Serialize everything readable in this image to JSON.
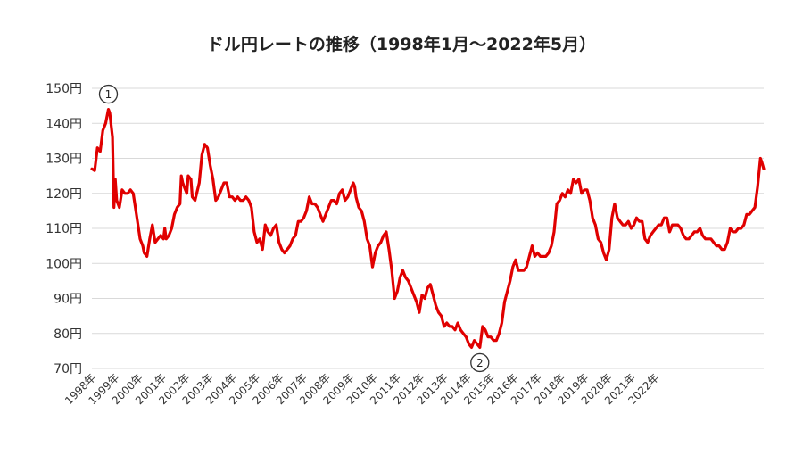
{
  "chart_data": {
    "type": "line",
    "title": "ドル円レートの推移（1998年1月～2022年5月）",
    "xlabel": "",
    "ylabel": "",
    "ylim": [
      70,
      150
    ],
    "yticks": [
      {
        "value": 150,
        "label": "150円"
      },
      {
        "value": 140,
        "label": "140円"
      },
      {
        "value": 130,
        "label": "130円"
      },
      {
        "value": 120,
        "label": "120円"
      },
      {
        "value": 110,
        "label": "110円"
      },
      {
        "value": 100,
        "label": "100円"
      },
      {
        "value": 90,
        "label": "90円"
      },
      {
        "value": 80,
        "label": "80円"
      },
      {
        "value": 70,
        "label": "70円"
      }
    ],
    "xticks": [
      "1998年",
      "1999年",
      "2000年",
      "2001年",
      "2002年",
      "2003年",
      "2004年",
      "2005年",
      "2006年",
      "2007年",
      "2008年",
      "2009年",
      "2010年",
      "2011年",
      "2012年",
      "2013年",
      "2014年",
      "2015年",
      "2016年",
      "2017年",
      "2018年",
      "2019年",
      "2020年",
      "2021年",
      "2022年"
    ],
    "xlim": [
      1998.0,
      2022.42
    ],
    "grid": true,
    "series": [
      {
        "color": "#e00000",
        "points": [
          [
            1998.0,
            127
          ],
          [
            1998.1,
            126.5
          ],
          [
            1998.2,
            133
          ],
          [
            1998.3,
            132
          ],
          [
            1998.4,
            138
          ],
          [
            1998.5,
            140
          ],
          [
            1998.6,
            144
          ],
          [
            1998.65,
            143
          ],
          [
            1998.75,
            136
          ],
          [
            1998.8,
            116
          ],
          [
            1998.85,
            124
          ],
          [
            1998.9,
            118
          ],
          [
            1999.0,
            116
          ],
          [
            1999.1,
            121
          ],
          [
            1999.2,
            120
          ],
          [
            1999.3,
            120
          ],
          [
            1999.4,
            121
          ],
          [
            1999.5,
            120
          ],
          [
            1999.6,
            115
          ],
          [
            1999.75,
            107
          ],
          [
            1999.85,
            105
          ],
          [
            1999.9,
            103
          ],
          [
            2000.0,
            102
          ],
          [
            2000.1,
            107
          ],
          [
            2000.2,
            111
          ],
          [
            2000.3,
            106
          ],
          [
            2000.4,
            107
          ],
          [
            2000.5,
            108
          ],
          [
            2000.6,
            107
          ],
          [
            2000.65,
            110
          ],
          [
            2000.7,
            107
          ],
          [
            2000.8,
            108
          ],
          [
            2000.9,
            110
          ],
          [
            2001.0,
            114
          ],
          [
            2001.1,
            116
          ],
          [
            2001.2,
            117
          ],
          [
            2001.25,
            125
          ],
          [
            2001.3,
            123
          ],
          [
            2001.4,
            121
          ],
          [
            2001.45,
            120
          ],
          [
            2001.5,
            125
          ],
          [
            2001.6,
            124
          ],
          [
            2001.65,
            119
          ],
          [
            2001.75,
            118
          ],
          [
            2001.9,
            123
          ],
          [
            2002.0,
            131
          ],
          [
            2002.1,
            134
          ],
          [
            2002.2,
            133
          ],
          [
            2002.3,
            128
          ],
          [
            2002.4,
            124
          ],
          [
            2002.5,
            118
          ],
          [
            2002.6,
            119
          ],
          [
            2002.7,
            121
          ],
          [
            2002.8,
            123
          ],
          [
            2002.9,
            123
          ],
          [
            2003.0,
            119
          ],
          [
            2003.1,
            119
          ],
          [
            2003.2,
            118
          ],
          [
            2003.3,
            119
          ],
          [
            2003.4,
            118
          ],
          [
            2003.5,
            118
          ],
          [
            2003.6,
            119
          ],
          [
            2003.7,
            118
          ],
          [
            2003.8,
            116
          ],
          [
            2003.9,
            109
          ],
          [
            2004.0,
            106
          ],
          [
            2004.1,
            107
          ],
          [
            2004.2,
            104
          ],
          [
            2004.3,
            111
          ],
          [
            2004.4,
            109
          ],
          [
            2004.5,
            108
          ],
          [
            2004.6,
            110
          ],
          [
            2004.7,
            111
          ],
          [
            2004.8,
            106
          ],
          [
            2004.9,
            104
          ],
          [
            2005.0,
            103
          ],
          [
            2005.1,
            104
          ],
          [
            2005.2,
            105
          ],
          [
            2005.3,
            107
          ],
          [
            2005.4,
            108
          ],
          [
            2005.5,
            112
          ],
          [
            2005.6,
            112
          ],
          [
            2005.7,
            113
          ],
          [
            2005.8,
            115
          ],
          [
            2005.9,
            119
          ],
          [
            2006.0,
            117
          ],
          [
            2006.1,
            117
          ],
          [
            2006.2,
            116
          ],
          [
            2006.3,
            114
          ],
          [
            2006.4,
            112
          ],
          [
            2006.5,
            114
          ],
          [
            2006.6,
            116
          ],
          [
            2006.7,
            118
          ],
          [
            2006.8,
            118
          ],
          [
            2006.9,
            117
          ],
          [
            2007.0,
            120
          ],
          [
            2007.1,
            121
          ],
          [
            2007.2,
            118
          ],
          [
            2007.3,
            119
          ],
          [
            2007.4,
            121
          ],
          [
            2007.5,
            123
          ],
          [
            2007.55,
            122
          ],
          [
            2007.6,
            119
          ],
          [
            2007.7,
            116
          ],
          [
            2007.8,
            115
          ],
          [
            2007.9,
            112
          ],
          [
            2008.0,
            107
          ],
          [
            2008.1,
            105
          ],
          [
            2008.2,
            99
          ],
          [
            2008.3,
            103
          ],
          [
            2008.4,
            105
          ],
          [
            2008.5,
            106
          ],
          [
            2008.6,
            108
          ],
          [
            2008.7,
            109
          ],
          [
            2008.8,
            104
          ],
          [
            2008.9,
            98
          ],
          [
            2009.0,
            90
          ],
          [
            2009.1,
            92
          ],
          [
            2009.2,
            96
          ],
          [
            2009.3,
            98
          ],
          [
            2009.4,
            96
          ],
          [
            2009.5,
            95
          ],
          [
            2009.6,
            93
          ],
          [
            2009.7,
            91
          ],
          [
            2009.8,
            89
          ],
          [
            2009.9,
            86
          ],
          [
            2010.0,
            91
          ],
          [
            2010.1,
            90
          ],
          [
            2010.2,
            93
          ],
          [
            2010.3,
            94
          ],
          [
            2010.4,
            91
          ],
          [
            2010.5,
            88
          ],
          [
            2010.6,
            86
          ],
          [
            2010.7,
            85
          ],
          [
            2010.8,
            82
          ],
          [
            2010.9,
            83
          ],
          [
            2011.0,
            82
          ],
          [
            2011.1,
            82
          ],
          [
            2011.2,
            81
          ],
          [
            2011.3,
            83
          ],
          [
            2011.4,
            81
          ],
          [
            2011.5,
            80
          ],
          [
            2011.6,
            79
          ],
          [
            2011.7,
            77
          ],
          [
            2011.8,
            76
          ],
          [
            2011.9,
            78
          ],
          [
            2012.0,
            77
          ],
          [
            2012.1,
            76
          ],
          [
            2012.2,
            82
          ],
          [
            2012.3,
            81
          ],
          [
            2012.4,
            79
          ],
          [
            2012.5,
            79
          ],
          [
            2012.6,
            78
          ],
          [
            2012.7,
            78
          ],
          [
            2012.8,
            80
          ],
          [
            2012.9,
            83
          ],
          [
            2013.0,
            89
          ],
          [
            2013.1,
            92
          ],
          [
            2013.2,
            95
          ],
          [
            2013.3,
            99
          ],
          [
            2013.4,
            101
          ],
          [
            2013.5,
            98
          ],
          [
            2013.6,
            98
          ],
          [
            2013.7,
            98
          ],
          [
            2013.8,
            99
          ],
          [
            2013.9,
            102
          ],
          [
            2014.0,
            105
          ],
          [
            2014.1,
            102
          ],
          [
            2014.2,
            103
          ],
          [
            2014.3,
            102
          ],
          [
            2014.4,
            102
          ],
          [
            2014.5,
            102
          ],
          [
            2014.6,
            103
          ],
          [
            2014.7,
            105
          ],
          [
            2014.8,
            109
          ],
          [
            2014.9,
            117
          ],
          [
            2015.0,
            118
          ],
          [
            2015.1,
            120
          ],
          [
            2015.2,
            119
          ],
          [
            2015.3,
            121
          ],
          [
            2015.4,
            120
          ],
          [
            2015.5,
            124
          ],
          [
            2015.6,
            123
          ],
          [
            2015.7,
            124
          ],
          [
            2015.8,
            120
          ],
          [
            2015.9,
            121
          ],
          [
            2016.0,
            121
          ],
          [
            2016.1,
            118
          ],
          [
            2016.2,
            113
          ],
          [
            2016.3,
            111
          ],
          [
            2016.4,
            107
          ],
          [
            2016.5,
            106
          ],
          [
            2016.6,
            103
          ],
          [
            2016.7,
            101
          ],
          [
            2016.8,
            104
          ],
          [
            2016.9,
            113
          ],
          [
            2017.0,
            117
          ],
          [
            2017.1,
            113
          ],
          [
            2017.2,
            112
          ],
          [
            2017.3,
            111
          ],
          [
            2017.4,
            111
          ],
          [
            2017.5,
            112
          ],
          [
            2017.6,
            110
          ],
          [
            2017.7,
            111
          ],
          [
            2017.8,
            113
          ],
          [
            2017.9,
            112
          ],
          [
            2018.0,
            112
          ],
          [
            2018.1,
            107
          ],
          [
            2018.2,
            106
          ],
          [
            2018.3,
            108
          ],
          [
            2018.4,
            109
          ],
          [
            2018.5,
            110
          ],
          [
            2018.6,
            111
          ],
          [
            2018.7,
            111
          ],
          [
            2018.8,
            113
          ],
          [
            2018.9,
            113
          ],
          [
            2019.0,
            109
          ],
          [
            2019.1,
            111
          ],
          [
            2019.2,
            111
          ],
          [
            2019.3,
            111
          ],
          [
            2019.4,
            110
          ],
          [
            2019.5,
            108
          ],
          [
            2019.6,
            107
          ],
          [
            2019.7,
            107
          ],
          [
            2019.8,
            108
          ],
          [
            2019.9,
            109
          ],
          [
            2020.0,
            109
          ],
          [
            2020.1,
            110
          ],
          [
            2020.2,
            108
          ],
          [
            2020.3,
            107
          ],
          [
            2020.4,
            107
          ],
          [
            2020.5,
            107
          ],
          [
            2020.6,
            106
          ],
          [
            2020.7,
            105
          ],
          [
            2020.8,
            105
          ],
          [
            2020.9,
            104
          ],
          [
            2021.0,
            104
          ],
          [
            2021.1,
            106
          ],
          [
            2021.2,
            110
          ],
          [
            2021.3,
            109
          ],
          [
            2021.4,
            109
          ],
          [
            2021.5,
            110
          ],
          [
            2021.6,
            110
          ],
          [
            2021.7,
            111
          ],
          [
            2021.8,
            114
          ],
          [
            2021.9,
            114
          ],
          [
            2022.0,
            115
          ],
          [
            2022.1,
            116
          ],
          [
            2022.2,
            122
          ],
          [
            2022.3,
            130
          ],
          [
            2022.35,
            129
          ],
          [
            2022.42,
            127
          ]
        ]
      }
    ],
    "annotations": [
      {
        "label": "①",
        "x": 1998.6,
        "y": 144,
        "placement": "above"
      },
      {
        "label": "②",
        "x": 2012.1,
        "y": 76,
        "placement": "below"
      }
    ]
  }
}
